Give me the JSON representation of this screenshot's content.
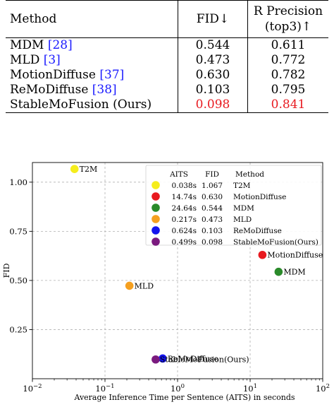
{
  "table": {
    "headers": {
      "method": "Method",
      "fid": "FID↓",
      "rprec_line1": "R Precision",
      "rprec_line2": "(top3)↑"
    },
    "rows": [
      {
        "method": "MDM",
        "ref": "[28]",
        "fid": "0.544",
        "rp": "0.611"
      },
      {
        "method": "MLD",
        "ref": "[3]",
        "fid": "0.473",
        "rp": "0.772"
      },
      {
        "method": "MotionDiffuse",
        "ref": "[37]",
        "fid": "0.630",
        "rp": "0.782"
      },
      {
        "method": "ReMoDiffuse",
        "ref": "[38]",
        "fid": "0.103",
        "rp": "0.795"
      },
      {
        "method": "StableMoFusion (Ours)",
        "ref": "",
        "fid": "0.098",
        "rp": "0.841"
      }
    ],
    "best_color": "#e8191f",
    "ref_color": "#1a1aff"
  },
  "chart_data": {
    "type": "scatter",
    "xlabel": "Average Inference Time per Sentence (AITS) in seconds",
    "ylabel": "FID",
    "x_scale": "log",
    "xlim": [
      0.01,
      100
    ],
    "ylim": [
      0,
      1.1
    ],
    "x_ticks": [
      {
        "value": 0.01,
        "base": "10",
        "exp": "−2"
      },
      {
        "value": 0.1,
        "base": "10",
        "exp": "−1"
      },
      {
        "value": 1,
        "base": "10",
        "exp": "0"
      },
      {
        "value": 10,
        "base": "10",
        "exp": "1"
      },
      {
        "value": 100,
        "base": "10",
        "exp": "2"
      }
    ],
    "y_ticks": [
      {
        "value": 0.25,
        "label": "0.25"
      },
      {
        "value": 0.5,
        "label": "0.50"
      },
      {
        "value": 0.75,
        "label": "0.75"
      },
      {
        "value": 1.0,
        "label": "1.00"
      }
    ],
    "grid": "dashed",
    "legend_placement": "top-right",
    "legend_headers": {
      "aits": "AITS",
      "fid": "FID",
      "method": "Method"
    },
    "points": [
      {
        "label": "T2M",
        "x": 0.038,
        "y": 1.067,
        "aits_label": "0.038s",
        "fid_label": "1.067",
        "color": "#f5ed1c"
      },
      {
        "label": "MotionDiffuse",
        "x": 14.74,
        "y": 0.63,
        "aits_label": "14.74s",
        "fid_label": "0.630",
        "color": "#e8191f"
      },
      {
        "label": "MDM",
        "x": 24.64,
        "y": 0.544,
        "aits_label": "24.64s",
        "fid_label": "0.544",
        "color": "#2a8a2a"
      },
      {
        "label": "MLD",
        "x": 0.217,
        "y": 0.473,
        "aits_label": "0.217s",
        "fid_label": "0.473",
        "color": "#f5a020"
      },
      {
        "label": "ReMoDiffuse",
        "x": 0.624,
        "y": 0.103,
        "aits_label": "0.624s",
        "fid_label": "0.103",
        "color": "#1414ee"
      },
      {
        "label": "StableMoFusion(Ours)",
        "x": 0.499,
        "y": 0.098,
        "aits_label": "0.499s",
        "fid_label": "0.098",
        "color": "#7a1a7e"
      }
    ]
  }
}
